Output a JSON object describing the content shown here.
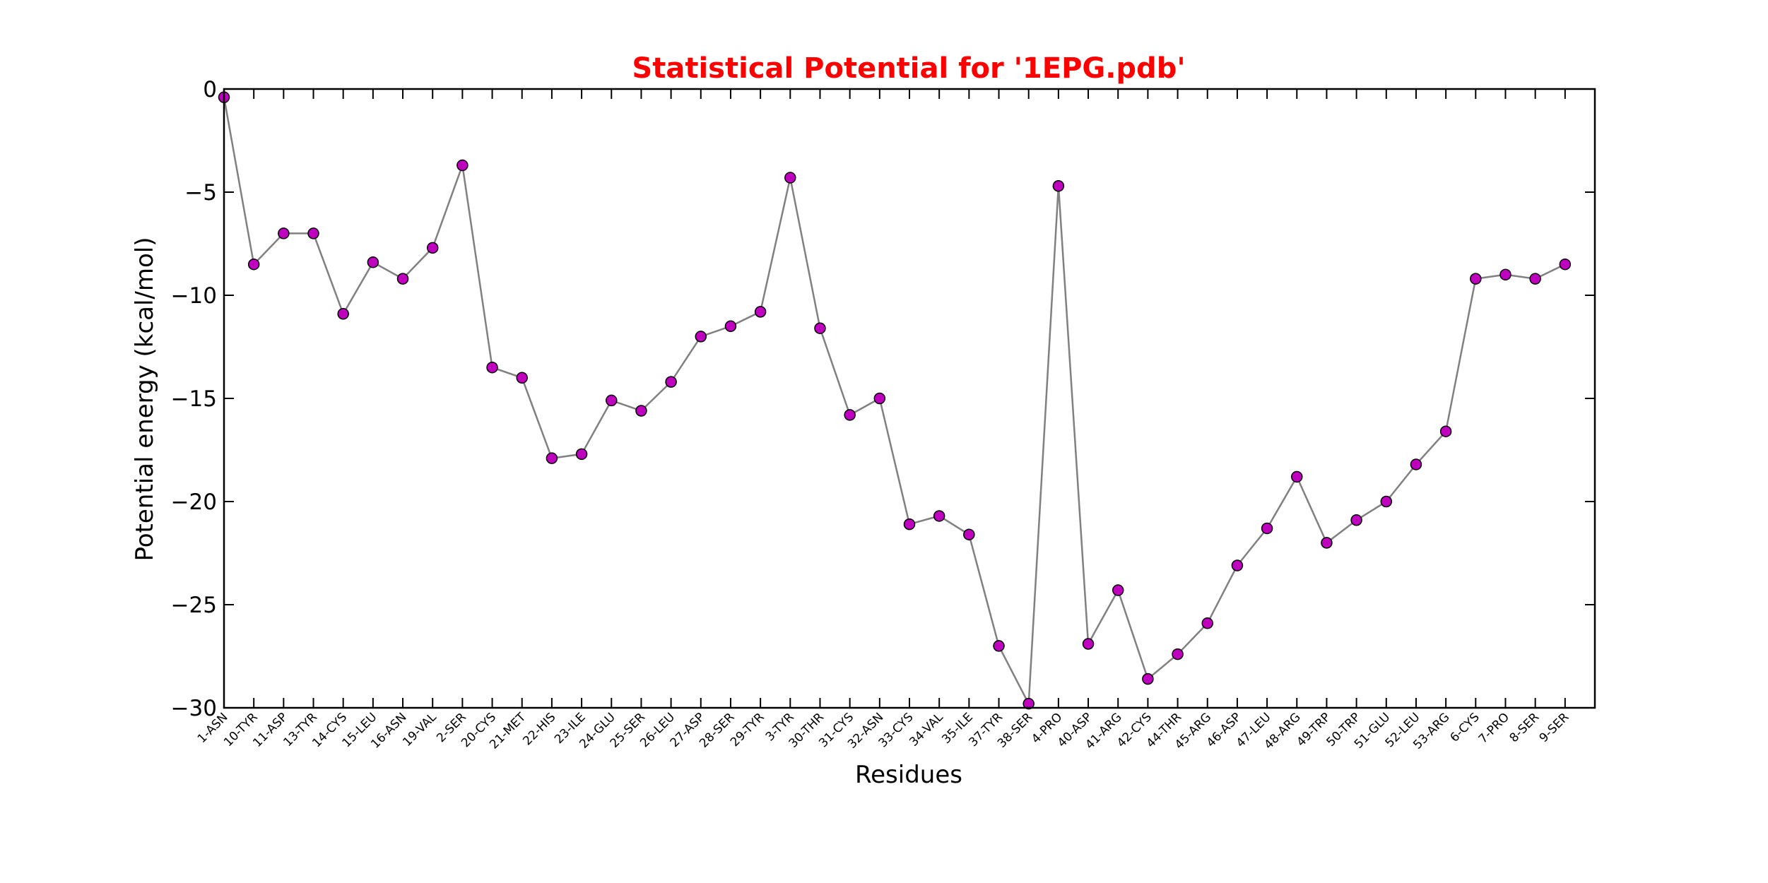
{
  "colors": {
    "title": "#ff0000",
    "line": "#808080",
    "marker": "#bf00bf",
    "marker_edge": "#000000"
  },
  "chart_data": {
    "type": "line",
    "title": "Statistical Potential for '1EPG.pdb'",
    "xlabel": "Residues",
    "ylabel": "Potential energy (kcal/mol)",
    "ylim": [
      -30,
      0
    ],
    "yticks": [
      0,
      -5,
      -10,
      -15,
      -20,
      -25,
      -30
    ],
    "ytick_labels": [
      "0",
      "−5",
      "−10",
      "−15",
      "−20",
      "−25",
      "−30"
    ],
    "grid": false,
    "categories": [
      "1-ASN",
      "10-TYR",
      "11-ASP",
      "13-TYR",
      "14-CYS",
      "15-LEU",
      "16-ASN",
      "19-VAL",
      "2-SER",
      "20-CYS",
      "21-MET",
      "22-HIS",
      "23-ILE",
      "24-GLU",
      "25-SER",
      "26-LEU",
      "27-ASP",
      "28-SER",
      "29-TYR",
      "3-TYR",
      "30-THR",
      "31-CYS",
      "32-ASN",
      "33-CYS",
      "34-VAL",
      "35-ILE",
      "37-TYR",
      "38-SER",
      "4-PRO",
      "40-ASP",
      "41-ARG",
      "42-CYS",
      "44-THR",
      "45-ARG",
      "46-ASP",
      "47-LEU",
      "48-ARG",
      "49-TRP",
      "50-TRP",
      "51-GLU",
      "52-LEU",
      "53-ARG",
      "6-CYS",
      "7-PRO",
      "8-SER",
      "9-SER"
    ],
    "values": [
      -0.4,
      -8.5,
      -7.0,
      -7.0,
      -10.9,
      -8.4,
      -9.2,
      -7.7,
      -3.7,
      -13.5,
      -14.0,
      -17.9,
      -17.7,
      -15.1,
      -15.6,
      -14.2,
      -12.0,
      -11.5,
      -10.8,
      -4.3,
      -11.6,
      -15.8,
      -15.0,
      -21.1,
      -20.7,
      -21.6,
      -27.0,
      -29.8,
      -4.7,
      -26.9,
      -24.3,
      -28.6,
      -27.4,
      -25.9,
      -23.1,
      -21.3,
      -18.8,
      -22.0,
      -20.9,
      -20.0,
      -18.2,
      -16.6,
      -9.2,
      -9.0,
      -9.2,
      -8.5
    ]
  }
}
